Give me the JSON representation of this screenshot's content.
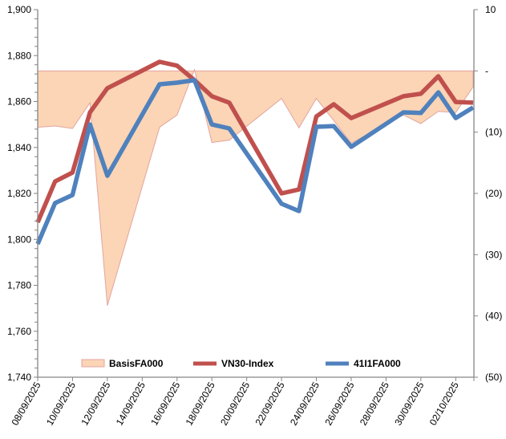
{
  "chart_data": {
    "type": "line",
    "title": "",
    "x_dates": [
      "08/09/2025",
      "09/09/2025",
      "10/09/2025",
      "11/09/2025",
      "12/09/2025",
      "15/09/2025",
      "16/09/2025",
      "17/09/2025",
      "18/09/2025",
      "19/09/2025",
      "22/09/2025",
      "23/09/2025",
      "24/09/2025",
      "25/09/2025",
      "26/09/2025",
      "29/09/2025",
      "30/09/2025",
      "01/10/2025",
      "02/10/2025",
      "03/10/2025"
    ],
    "x_day_offsets": [
      0,
      1,
      2,
      3,
      4,
      7,
      8,
      9,
      10,
      11,
      14,
      15,
      16,
      17,
      18,
      21,
      22,
      23,
      24,
      25
    ],
    "x_tick_labels": [
      "08/09/2025",
      "10/09/2025",
      "12/09/2025",
      "14/09/2025",
      "16/09/2025",
      "18/09/2025",
      "20/09/2025",
      "22/09/2025",
      "24/09/2025",
      "26/09/2025",
      "28/09/2025",
      "30/09/2025",
      "02/10/2025"
    ],
    "x_day_span": 25,
    "y_left": {
      "range": [
        1740,
        1900
      ],
      "ticks": [
        "1,740",
        "1,760",
        "1,780",
        "1,800",
        "1,820",
        "1,840",
        "1,860",
        "1,880",
        "1,900"
      ],
      "tick_values": [
        1740,
        1760,
        1780,
        1800,
        1820,
        1840,
        1860,
        1880,
        1900
      ]
    },
    "y_right": {
      "range": [
        -50,
        10
      ],
      "ticks": [
        "(50)",
        "(40)",
        "(30)",
        "(20)",
        "(10)",
        "-",
        "10"
      ],
      "tick_values": [
        -50,
        -40,
        -30,
        -20,
        -10,
        0,
        10
      ]
    },
    "series": [
      {
        "name": "BasisFA000",
        "kind": "area",
        "axis": "right",
        "color": "#FBD5B5",
        "stroke": "#E3A4A0",
        "values": [
          -9.2,
          -9.0,
          -9.4,
          -5.2,
          -38.3,
          -9.2,
          -7.2,
          0.2,
          -11.7,
          -11.3,
          -4.5,
          -9.3,
          -4.5,
          -8.1,
          -11.8,
          -7.2,
          -8.6,
          -6.6,
          -6.8,
          -2.6
        ]
      },
      {
        "name": "VN30-Index",
        "kind": "line",
        "axis": "left",
        "color": "#C0504D",
        "values": [
          1807.4,
          1825.2,
          1829.1,
          1855.3,
          1865.8,
          1877.3,
          1875.6,
          1869.3,
          1862.3,
          1859.5,
          1820.0,
          1821.7,
          1853.5,
          1858.8,
          1852.8,
          1862.3,
          1863.4,
          1871.0,
          1859.8,
          1859.5
        ]
      },
      {
        "name": "41I1FA000",
        "kind": "line",
        "axis": "left",
        "color": "#4F81BD",
        "values": [
          1798.0,
          1815.8,
          1819.3,
          1850.0,
          1827.7,
          1867.5,
          1868.2,
          1869.3,
          1850.0,
          1848.3,
          1815.5,
          1812.3,
          1849.0,
          1849.3,
          1840.3,
          1855.3,
          1855.0,
          1864.0,
          1852.8,
          1857.4
        ]
      }
    ],
    "legend": {
      "placement": "bottom-inside",
      "entries": [
        "BasisFA000",
        "VN30-Index",
        "41I1FA000"
      ]
    },
    "grid": false
  }
}
